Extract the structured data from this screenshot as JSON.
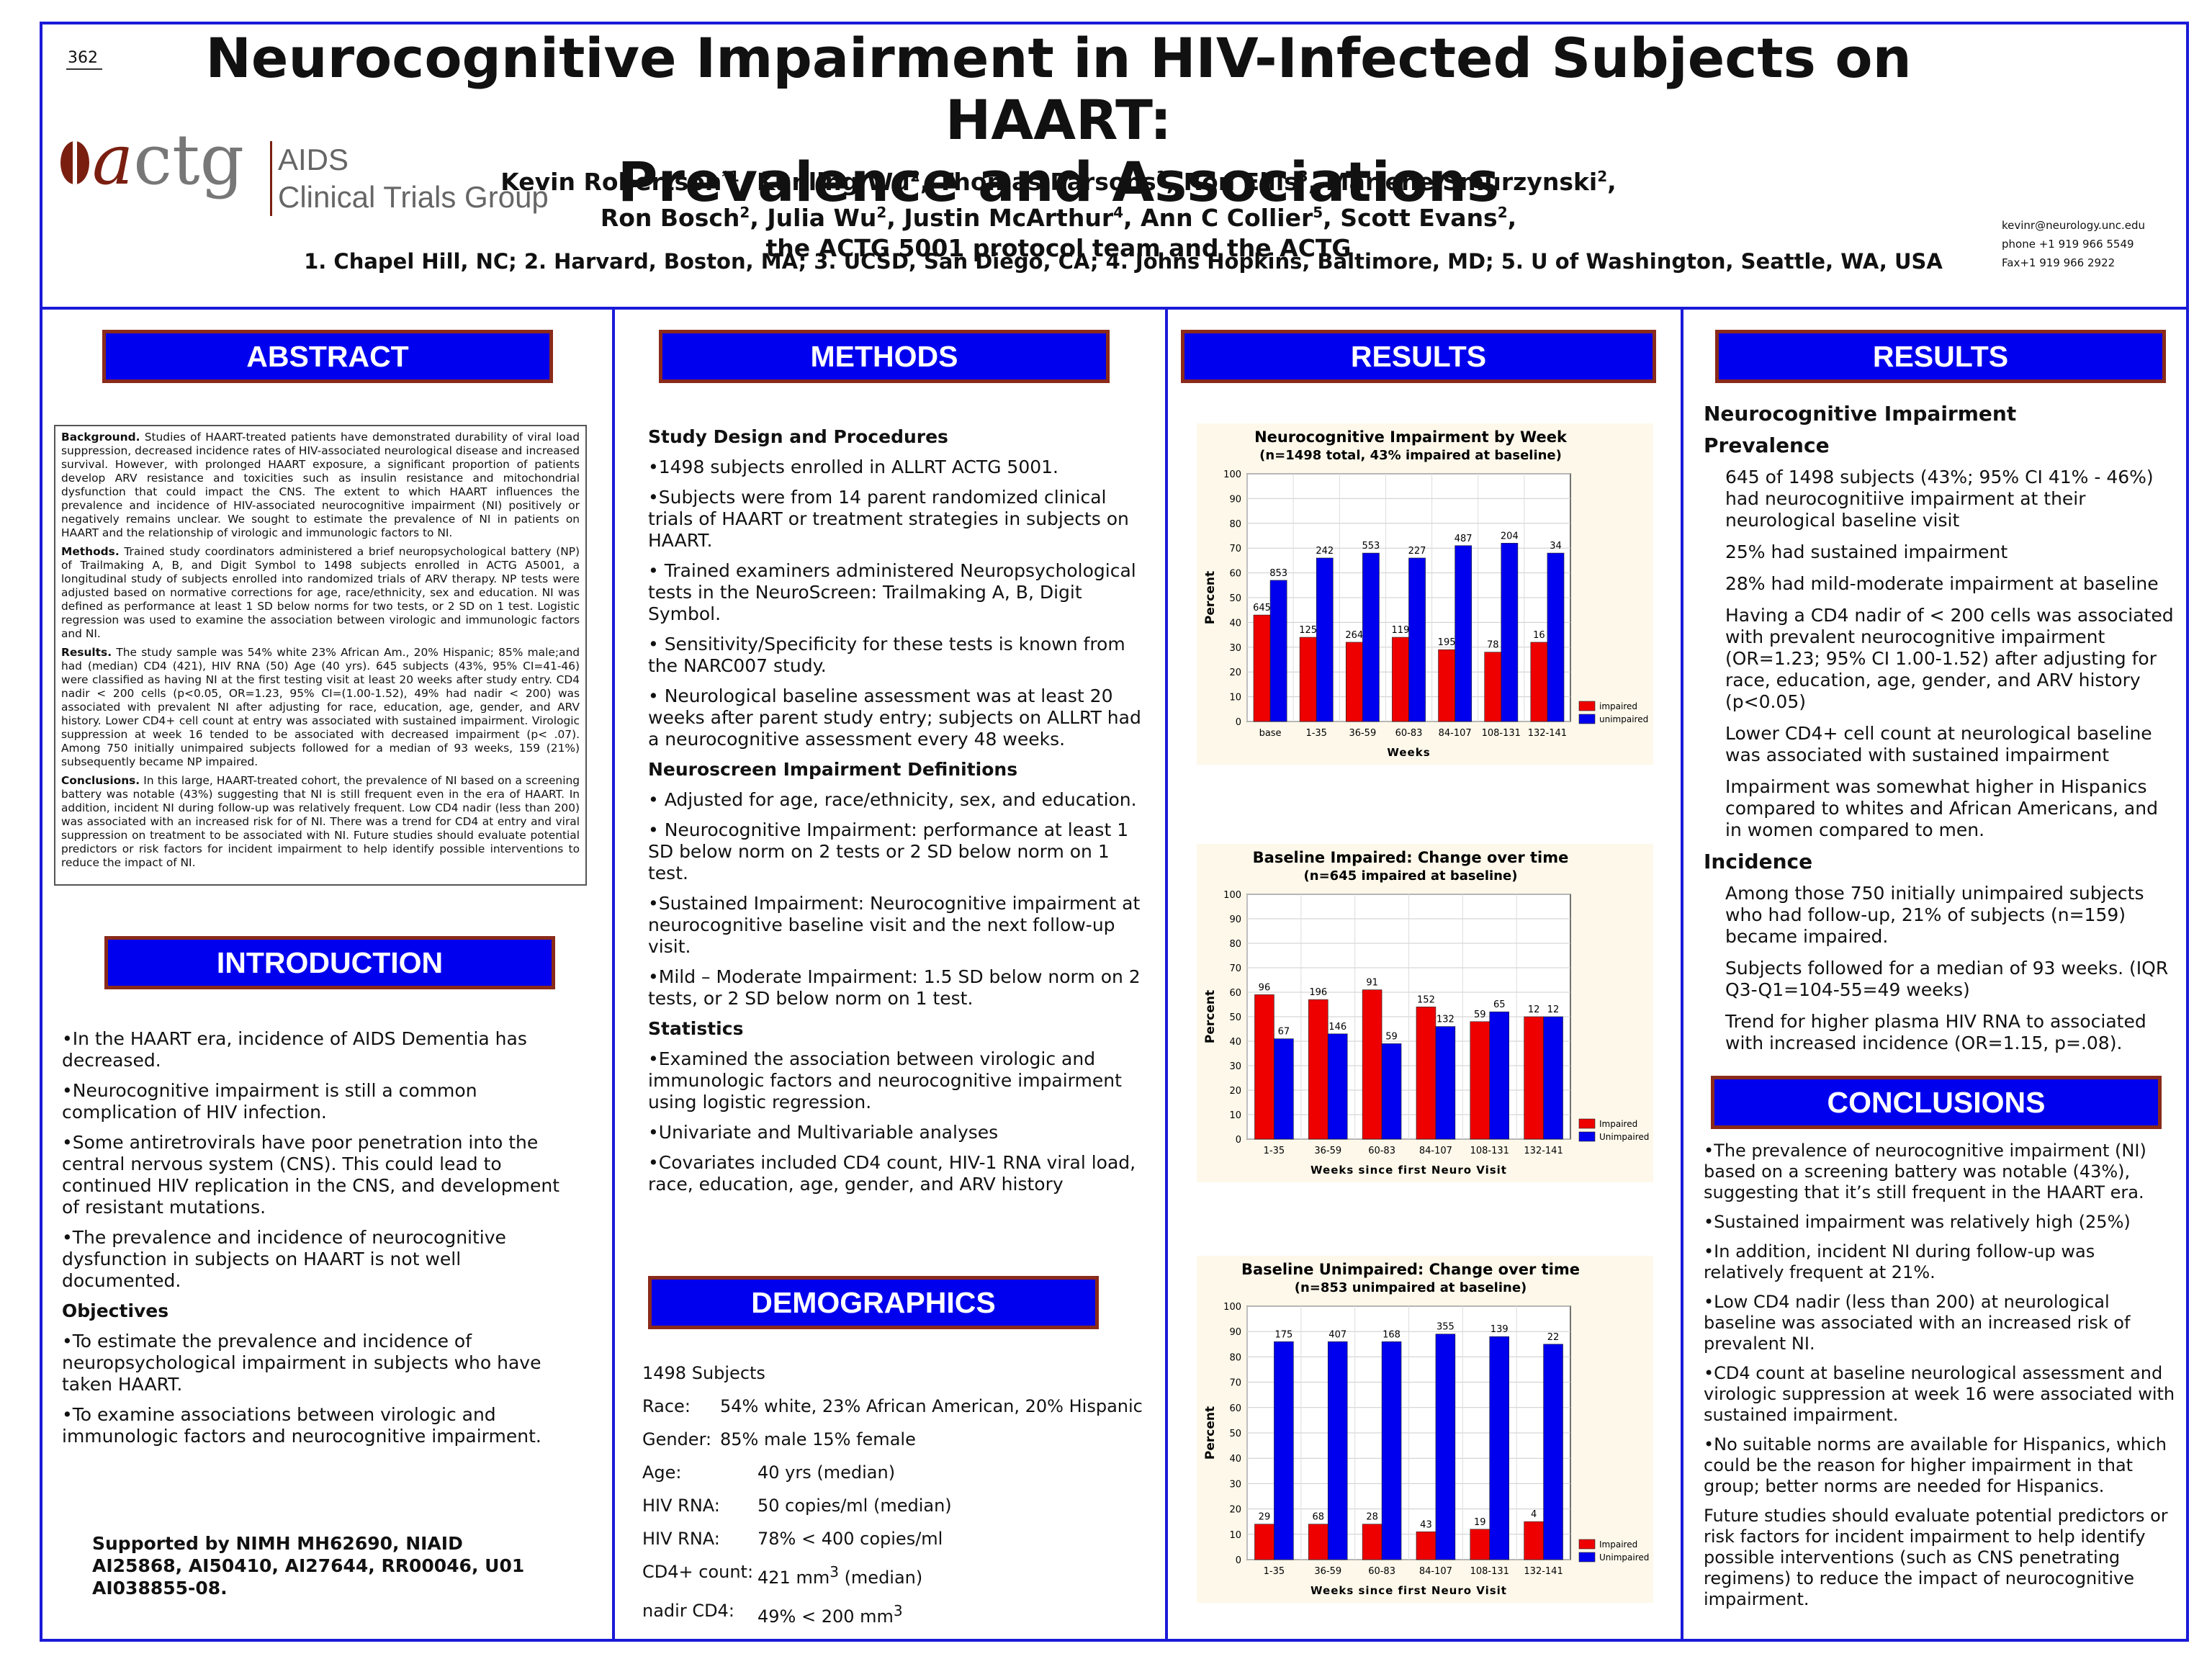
{
  "header": {
    "page_number": "362",
    "title_line1": "Neurocognitive Impairment in HIV-Infected Subjects on HAART:",
    "title_line2": "Prevalence and Associations",
    "logo_acronym_a": "a",
    "logo_acronym_rest": "ctg",
    "logo_line1": "AIDS",
    "logo_line2": "Clinical Trials Group",
    "authors": [
      {
        "name": "Kevin Robertson",
        "sup": "*1"
      },
      {
        "name": "Kunling Wu",
        "sup": "2"
      },
      {
        "name": "Thomas Parsons",
        "sup": "1"
      },
      {
        "name": "Ron Ellis",
        "sup": "3"
      },
      {
        "name": "Marlene Smurzynski",
        "sup": "2"
      },
      {
        "name": "Ron Bosch",
        "sup": "2"
      },
      {
        "name": "Julia Wu",
        "sup": "2"
      },
      {
        "name": "Justin McArthur",
        "sup": "4"
      },
      {
        "name": "Ann C Collier",
        "sup": "5"
      },
      {
        "name": "Scott Evans",
        "sup": "2"
      }
    ],
    "authors_tail": "the ACTG 5001 protocol team and the ACTG",
    "affiliations": "1. Chapel Hill, NC; 2. Harvard, Boston, MA; 3. UCSD, San Diego, CA; 4. Johns Hopkins, Baltimore, MD; 5. U of Washington, Seattle, WA, USA",
    "contact": [
      "kevinr@neurology.unc.edu",
      "phone +1 919 966 5549",
      "Fax+1 919 966 2922"
    ]
  },
  "sections": {
    "abstract": "ABSTRACT",
    "introduction": "INTRODUCTION",
    "methods": "METHODS",
    "demographics": "DEMOGRAPHICS",
    "results1": "RESULTS",
    "results2": "RESULTS",
    "conclusions": "CONCLUSIONS"
  },
  "abstract": {
    "background_label": "Background.",
    "background": "Studies of HAART-treated patients have demonstrated durability of viral load suppression, decreased incidence rates of HIV-associated neurological disease and increased survival. However, with prolonged HAART exposure, a significant proportion of patients develop ARV resistance and toxicities such as insulin resistance and mitochondrial dysfunction that could impact the CNS. The extent to which HAART influences the prevalence and incidence of HIV-associated neurocognitive impairment (NI) positively or negatively remains unclear. We sought to estimate the prevalence of NI in patients on HAART and the relationship of virologic and immunologic factors to NI.",
    "methods_label": "Methods.",
    "methods": "Trained study coordinators administered a brief neuropsychological battery (NP) of Trailmaking A, B, and Digit Symbol to 1498 subjects enrolled in ACTG A5001, a longitudinal study of subjects enrolled into randomized trials of ARV therapy. NP tests were adjusted based on normative corrections for age, race/ethnicity, sex and education. NI was defined as performance at least 1 SD below norms for two tests, or 2 SD on 1 test. Logistic regression was used to examine the association between virologic and immunologic factors and NI.",
    "results_label": "Results.",
    "results": "The study sample was 54% white 23% African Am., 20% Hispanic; 85% male;and had (median) CD4 (421), HIV RNA (50) Age (40 yrs). 645 subjects (43%, 95% CI=41-46) were classified as having NI at the first testing visit at least 20 weeks after study entry. CD4 nadir < 200 cells (p<0.05, OR=1.23, 95% CI=(1.00-1.52), 49% had nadir < 200) was associated with prevalent NI after adjusting for race, education, age, gender, and ARV history. Lower CD4+ cell count at entry was associated with sustained impairment. Virologic suppression at week 16 tended to be associated with decreased impairment (p< .07). Among 750 initially unimpaired subjects followed for a median of 93 weeks, 159 (21%) subsequently became NP impaired.",
    "conclusions_label": "Conclusions.",
    "conclusions": "In this large, HAART-treated cohort, the prevalence of NI based on a screening battery was notable (43%) suggesting that NI is still frequent even in the era of HAART. In addition, incident NI during follow-up was relatively frequent. Low CD4 nadir (less than 200) was associated with an increased risk for of NI. There was a trend for CD4 at entry and viral suppression on treatment to be associated with NI. Future studies should evaluate potential predictors or risk factors for incident impairment to help identify possible interventions to reduce the impact of NI."
  },
  "introduction": {
    "bullets": [
      "•In the HAART era, incidence of AIDS Dementia has decreased.",
      "•Neurocognitive impairment is still a common complication of HIV infection.",
      "•Some antiretrovirals have poor penetration into the central nervous system (CNS). This could lead to continued HIV replication in the CNS, and development of resistant mutations.",
      "•The prevalence and incidence of neurocognitive dysfunction in subjects on HAART is not well documented."
    ],
    "objectives_heading": "Objectives",
    "objectives": [
      "•To estimate the prevalence and incidence of neuropsychological impairment in subjects who have taken HAART.",
      "•To examine associations between virologic and immunologic factors and neurocognitive impairment."
    ],
    "supported": "Supported by NIMH MH62690, NIAID AI25868, AI50410, AI27644, RR00046, U01 AI038855-08."
  },
  "methods": {
    "study_heading": "Study Design and Procedures",
    "study_bullets": [
      "•1498 subjects enrolled in ALLRT ACTG 5001.",
      "•Subjects were from 14 parent randomized clinical trials of HAART or treatment strategies in subjects on HAART.",
      "• Trained examiners administered Neuropsychological tests in the NeuroScreen: Trailmaking A, B, Digit Symbol.",
      "• Sensitivity/Specificity for these tests is known from the NARC007 study.",
      "• Neurological baseline assessment was at least 20 weeks after parent study entry; subjects on ALLRT had a neurocognitive assessment every 48 weeks."
    ],
    "definitions_heading": "Neuroscreen Impairment Definitions",
    "definitions_bullets": [
      "• Adjusted for age, race/ethnicity, sex, and education.",
      "• Neurocognitive Impairment: performance at least 1 SD below norm on 2 tests or 2 SD below norm on 1 test.",
      "•Sustained Impairment: Neurocognitive impairment at neurocognitive baseline visit and the next follow-up visit.",
      "•Mild – Moderate Impairment:  1.5 SD below norm on 2 tests, or 2 SD below norm on 1 test."
    ],
    "statistics_heading": "Statistics",
    "statistics_bullets": [
      "•Examined the association between virologic and immunologic factors and neurocognitive impairment using logistic regression.",
      "•Univariate and Multivariable analyses",
      "•Covariates included CD4 count, HIV-1 RNA viral load, race, education, age, gender, and ARV history"
    ]
  },
  "demographics": {
    "subjects": "1498 Subjects",
    "race_label": "Race:",
    "race": "54% white, 23% African American, 20% Hispanic",
    "gender_label": "Gender:",
    "gender": "85% male 15% female",
    "age_label": "Age:",
    "age": "40 yrs (median)",
    "rna1_label": "HIV RNA:",
    "rna1": "50 copies/ml (median)",
    "rna2_label": "HIV RNA:",
    "rna2": "78% < 400 copies/ml",
    "cd4_label": "CD4+ count:",
    "cd4_value": "421 mm",
    "cd4_sup": "3",
    "cd4_tail": " (median)",
    "nadir_label": "nadir CD4:",
    "nadir_value": "49% < 200 mm",
    "nadir_sup": "3"
  },
  "results_right": {
    "heading1": "Neurocognitive Impairment",
    "heading2": "Prevalence",
    "prevalence": [
      "645 of 1498 subjects (43%; 95% CI 41% - 46%) had neurocognitiive impairment at their neurological baseline visit",
      "25% had sustained impairment",
      "28% had mild-moderate impairment at baseline",
      "Having a CD4 nadir of < 200 cells was associated with prevalent neurocognitive impairment (OR=1.23; 95% CI 1.00-1.52) after adjusting for race, education, age, gender, and ARV history (p<0.05)",
      "Lower CD4+ cell count at neurological baseline was associated with sustained impairment",
      "Impairment was somewhat higher in Hispanics compared to whites and African Americans, and in women compared to men."
    ],
    "heading3": "Incidence",
    "incidence": [
      "Among those 750 initially unimpaired subjects who had follow-up, 21% of subjects (n=159) became impaired.",
      "Subjects followed for a median of 93 weeks. (IQR Q3-Q1=104-55=49 weeks)",
      "Trend for higher plasma HIV RNA to associated with increased incidence (OR=1.15, p=.08)."
    ]
  },
  "conclusions": {
    "bullets": [
      "•The prevalence of neurocognitive impairment (NI) based on a screening battery was notable (43%), suggesting that it’s still frequent in the HAART era.",
      "•Sustained impairment was relatively high (25%)",
      "•In addition, incident NI during follow-up was relatively frequent at 21%.",
      "•Low CD4 nadir (less than 200) at neurological baseline was associated with an increased risk of prevalent NI.",
      "•CD4 count at baseline neurological assessment and virologic suppression at week 16 were associated with sustained impairment.",
      "•No suitable norms are available for Hispanics, which could be the reason for higher impairment in that group; better norms are needed for Hispanics.",
      "Future studies should evaluate potential predictors or risk factors for incident impairment to help identify possible interventions (such as CNS penetrating regimens) to reduce the impact of neurocognitive impairment."
    ]
  },
  "colors": {
    "impaired": "#ee0000",
    "unimpaired": "#0000ee",
    "frame": "#1a1ad8",
    "header_bg": "#0000ee",
    "header_border": "#8a2a1a"
  },
  "chart_data": [
    {
      "type": "bar",
      "title": "Neurocognitive Impairment by Week",
      "subtitle": "(n=1498 total, 43% impaired at baseline)",
      "xlabel": "Weeks",
      "ylabel": "Percent",
      "ylim": [
        0,
        100
      ],
      "yticks": [
        "0",
        "10",
        "20",
        "30",
        "40",
        "50",
        "60",
        "70",
        "80",
        "90",
        "100"
      ],
      "categories": [
        "base",
        "1-35",
        "36-59",
        "60-83",
        "84-107",
        "108-131",
        "132-141"
      ],
      "series": [
        {
          "name": "impaired",
          "values": [
            43,
            34,
            32,
            34,
            29,
            28,
            32
          ],
          "labels": [
            "645",
            "125",
            "264",
            "119",
            "195",
            "78",
            "16"
          ]
        },
        {
          "name": "unimpaired",
          "values": [
            57,
            66,
            68,
            66,
            71,
            72,
            68
          ],
          "labels": [
            "853",
            "242",
            "553",
            "227",
            "487",
            "204",
            "34"
          ]
        }
      ],
      "legend": "bottom-right"
    },
    {
      "type": "bar",
      "title": "Baseline Impaired: Change over time",
      "subtitle": "(n=645 impaired at baseline)",
      "xlabel": "Weeks since first Neuro Visit",
      "ylabel": "Percent",
      "ylim": [
        0,
        100
      ],
      "yticks": [
        "0",
        "10",
        "20",
        "30",
        "40",
        "50",
        "60",
        "70",
        "80",
        "90",
        "100"
      ],
      "categories": [
        "1-35",
        "36-59",
        "60-83",
        "84-107",
        "108-131",
        "132-141"
      ],
      "series": [
        {
          "name": "Impaired",
          "values": [
            59,
            57,
            61,
            54,
            48,
            50
          ],
          "labels": [
            "96",
            "196",
            "91",
            "152",
            "59",
            "12"
          ]
        },
        {
          "name": "Unimpaired",
          "values": [
            41,
            43,
            39,
            46,
            52,
            50
          ],
          "labels": [
            "67",
            "146",
            "59",
            "132",
            "65",
            "12"
          ]
        }
      ],
      "legend": "bottom-right"
    },
    {
      "type": "bar",
      "title": "Baseline Unimpaired: Change over time",
      "subtitle": "(n=853 unimpaired at baseline)",
      "xlabel": "Weeks since first Neuro Visit",
      "ylabel": "Percent",
      "ylim": [
        0,
        100
      ],
      "yticks": [
        "0",
        "10",
        "20",
        "30",
        "40",
        "50",
        "60",
        "70",
        "80",
        "90",
        "100"
      ],
      "categories": [
        "1-35",
        "36-59",
        "60-83",
        "84-107",
        "108-131",
        "132-141"
      ],
      "series": [
        {
          "name": "Impaired",
          "values": [
            14,
            14,
            14,
            11,
            12,
            15
          ],
          "labels": [
            "29",
            "68",
            "28",
            "43",
            "19",
            "4"
          ]
        },
        {
          "name": "Unimpaired",
          "values": [
            86,
            86,
            86,
            89,
            88,
            85
          ],
          "labels": [
            "175",
            "407",
            "168",
            "355",
            "139",
            "22"
          ]
        }
      ],
      "legend": "bottom-right"
    }
  ]
}
